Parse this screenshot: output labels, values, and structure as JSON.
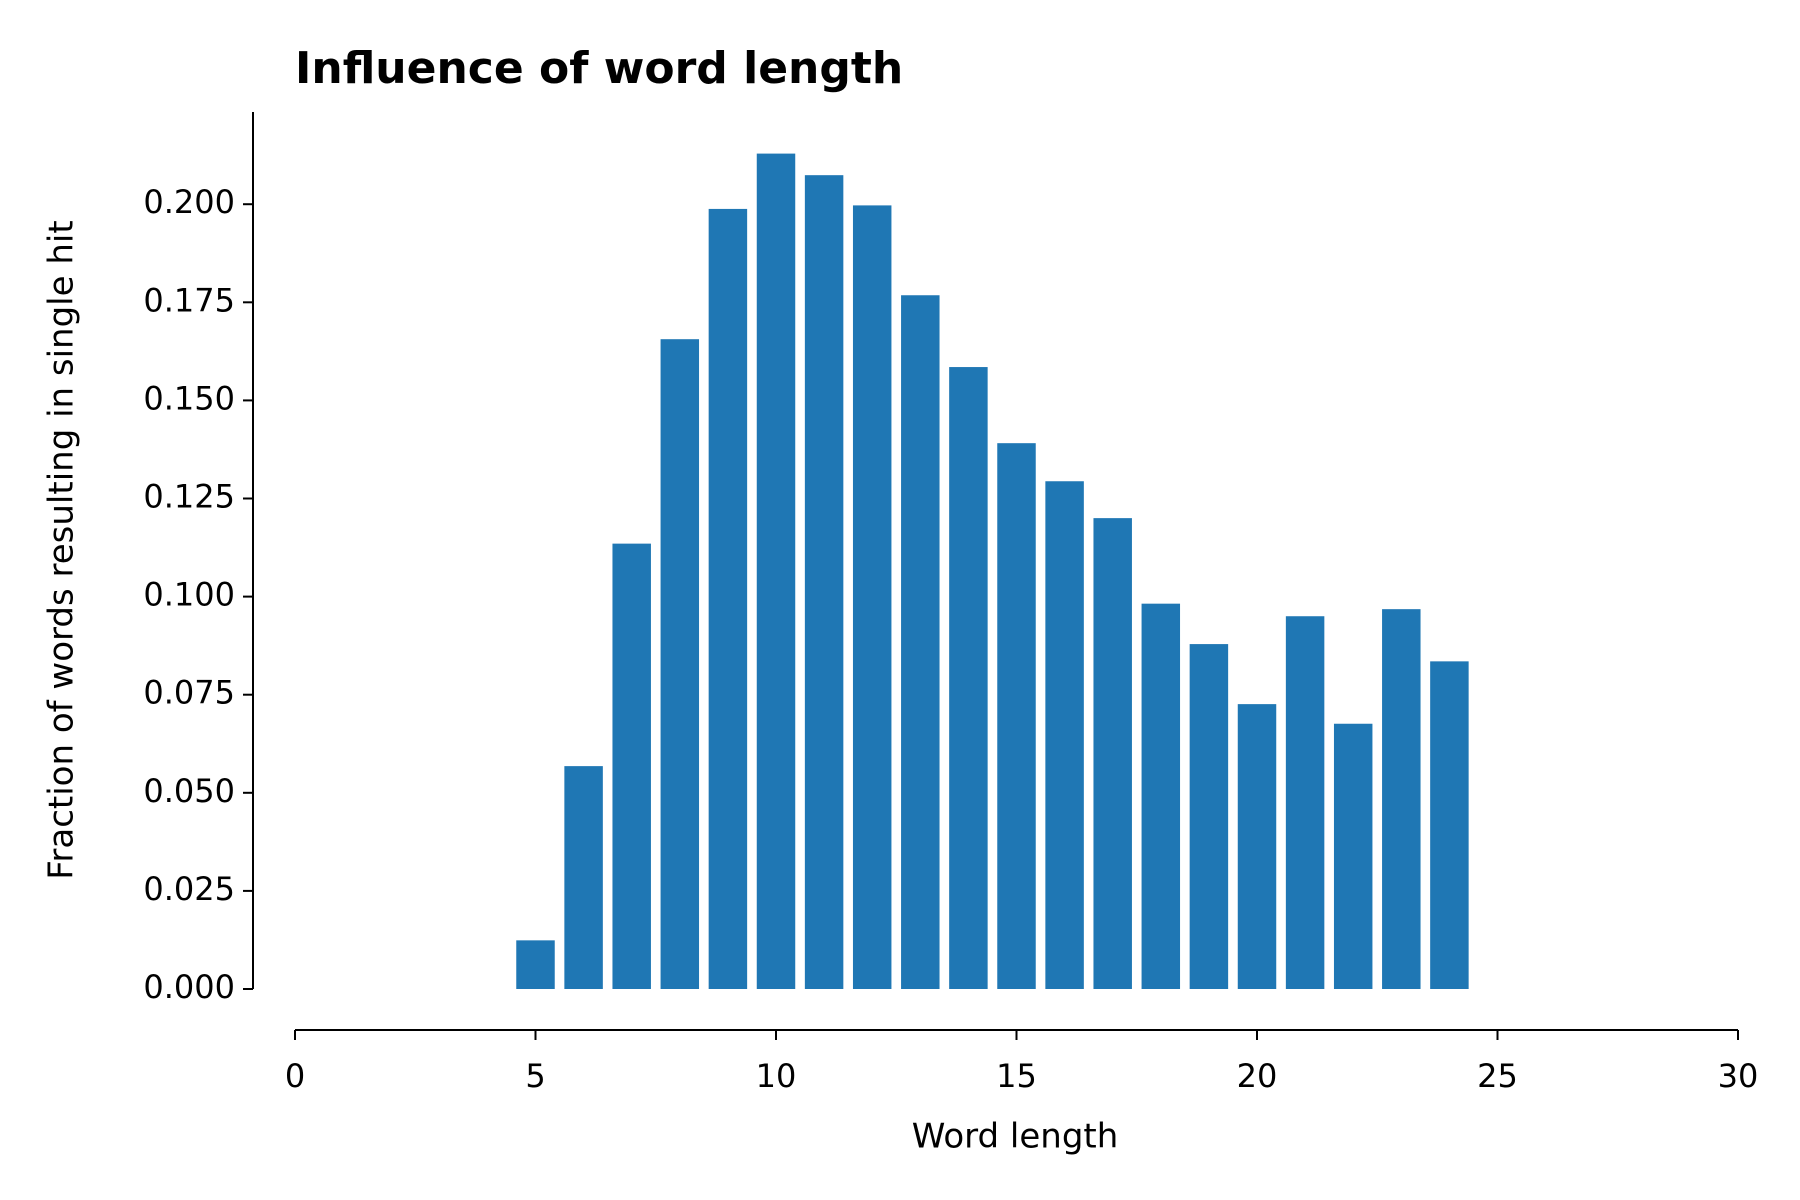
{
  "chart_data": {
    "type": "bar",
    "title": "Influence of word length",
    "xlabel": "Word length",
    "ylabel": "Fraction of words resulting in single hit",
    "x": [
      5,
      6,
      7,
      8,
      9,
      10,
      11,
      12,
      13,
      14,
      15,
      16,
      17,
      18,
      19,
      20,
      21,
      22,
      23,
      24
    ],
    "values": [
      0.0124,
      0.0568,
      0.1135,
      0.1656,
      0.1988,
      0.2129,
      0.2074,
      0.1997,
      0.1768,
      0.1585,
      0.1391,
      0.1294,
      0.12,
      0.0982,
      0.0879,
      0.0726,
      0.095,
      0.0676,
      0.0968,
      0.0835
    ],
    "color": "#1f77b4",
    "xlim": [
      0,
      30
    ],
    "xticks": [
      0,
      5,
      10,
      15,
      20,
      25,
      30
    ],
    "ylim": [
      0,
      0.2235
    ],
    "yticks": [
      {
        "value": 0,
        "label": "0.000"
      },
      {
        "value": 0.025,
        "label": "0.025"
      },
      {
        "value": 0.05,
        "label": "0.050"
      },
      {
        "value": 0.075,
        "label": "0.075"
      },
      {
        "value": 0.1,
        "label": "0.100"
      },
      {
        "value": 0.125,
        "label": "0.125"
      },
      {
        "value": 0.15,
        "label": "0.150"
      },
      {
        "value": 0.175,
        "label": "0.175"
      },
      {
        "value": 0.2,
        "label": "0.200"
      }
    ],
    "grid": false
  }
}
